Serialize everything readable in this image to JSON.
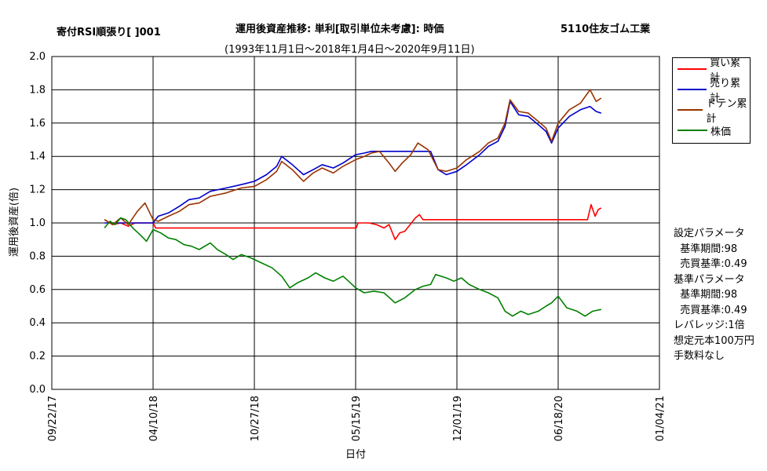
{
  "header": {
    "left_title": "寄付RSI順張り[ ]001",
    "center_title": "運用後資産推移: 単利[取引単位未考慮]: 時価",
    "right_title": "5110住友ゴム工業",
    "subtitle": "(1993年11月1日〜2018年1月4日〜2020年9月11日)"
  },
  "legend": {
    "items": [
      {
        "label": "買い累計",
        "color": "#ff0000"
      },
      {
        "label": "売り累計",
        "color": "#0000cc"
      },
      {
        "label": "ドテン累計",
        "color": "#993300"
      },
      {
        "label": "株価",
        "color": "#008000"
      }
    ]
  },
  "params": {
    "lines": [
      "設定パラメータ",
      "  基準期間:98",
      "  売買基準:0.49",
      "基準パラメータ",
      "  基準期間:98",
      "  売買基準:0.49",
      "レバレッジ:1倍",
      "想定元本100万円",
      "手数料なし"
    ]
  },
  "chart_data": {
    "type": "line",
    "xlabel": "日付",
    "ylabel": "運用後資産(倍)",
    "ylim": [
      0.0,
      2.0
    ],
    "y_ticks": [
      "0.0",
      "0.2",
      "0.4",
      "0.6",
      "0.8",
      "1.0",
      "1.2",
      "1.4",
      "1.6",
      "1.8",
      "2.0"
    ],
    "x_ticks": [
      "09/22/17",
      "04/10/18",
      "10/27/18",
      "05/15/19",
      "12/01/19",
      "06/18/20",
      "01/04/21"
    ],
    "grid": true,
    "legend_position": "right",
    "series": [
      {
        "name": "買い累計",
        "color": "#ff0000",
        "points": [
          [
            "2018-01-04",
            1.02
          ],
          [
            "2018-01-20",
            0.99
          ],
          [
            "2018-02-05",
            1.0
          ],
          [
            "2018-02-20",
            0.98
          ],
          [
            "2018-03-05",
            1.0
          ],
          [
            "2018-04-10",
            1.0
          ],
          [
            "2018-04-15",
            0.97
          ],
          [
            "2019-05-15",
            0.97
          ],
          [
            "2019-05-16",
            0.97
          ],
          [
            "2019-05-20",
            1.0
          ],
          [
            "2019-06-10",
            1.0
          ],
          [
            "2019-06-25",
            0.99
          ],
          [
            "2019-07-10",
            0.97
          ],
          [
            "2019-07-20",
            0.99
          ],
          [
            "2019-08-01",
            0.9
          ],
          [
            "2019-08-10",
            0.94
          ],
          [
            "2019-08-20",
            0.95
          ],
          [
            "2019-08-28",
            0.98
          ],
          [
            "2019-09-10",
            1.03
          ],
          [
            "2019-09-18",
            1.05
          ],
          [
            "2019-09-25",
            1.02
          ],
          [
            "2020-08-15",
            1.02
          ],
          [
            "2020-08-22",
            1.11
          ],
          [
            "2020-08-30",
            1.04
          ],
          [
            "2020-09-05",
            1.08
          ],
          [
            "2020-09-11",
            1.09
          ]
        ]
      },
      {
        "name": "売り累計",
        "color": "#0000cc",
        "points": [
          [
            "2018-01-04",
            1.0
          ],
          [
            "2018-02-01",
            1.0
          ],
          [
            "2018-04-10",
            1.0
          ],
          [
            "2018-04-20",
            1.04
          ],
          [
            "2018-05-10",
            1.06
          ],
          [
            "2018-06-01",
            1.1
          ],
          [
            "2018-06-20",
            1.14
          ],
          [
            "2018-07-10",
            1.15
          ],
          [
            "2018-08-01",
            1.19
          ],
          [
            "2018-09-01",
            1.21
          ],
          [
            "2018-10-01",
            1.23
          ],
          [
            "2018-10-27",
            1.25
          ],
          [
            "2018-11-20",
            1.29
          ],
          [
            "2018-12-10",
            1.34
          ],
          [
            "2018-12-20",
            1.4
          ],
          [
            "2019-01-10",
            1.35
          ],
          [
            "2019-02-01",
            1.29
          ],
          [
            "2019-02-20",
            1.32
          ],
          [
            "2019-03-10",
            1.35
          ],
          [
            "2019-04-01",
            1.33
          ],
          [
            "2019-04-20",
            1.36
          ],
          [
            "2019-05-15",
            1.41
          ],
          [
            "2019-06-01",
            1.42
          ],
          [
            "2019-06-15",
            1.43
          ],
          [
            "2019-10-10",
            1.43
          ],
          [
            "2019-10-25",
            1.32
          ],
          [
            "2019-11-10",
            1.29
          ],
          [
            "2019-12-01",
            1.31
          ],
          [
            "2019-12-20",
            1.35
          ],
          [
            "2020-01-15",
            1.41
          ],
          [
            "2020-02-01",
            1.46
          ],
          [
            "2020-02-20",
            1.49
          ],
          [
            "2020-03-05",
            1.58
          ],
          [
            "2020-03-15",
            1.73
          ],
          [
            "2020-04-01",
            1.65
          ],
          [
            "2020-04-20",
            1.64
          ],
          [
            "2020-05-10",
            1.59
          ],
          [
            "2020-05-25",
            1.55
          ],
          [
            "2020-06-05",
            1.48
          ],
          [
            "2020-06-18",
            1.57
          ],
          [
            "2020-07-10",
            1.64
          ],
          [
            "2020-08-01",
            1.68
          ],
          [
            "2020-08-20",
            1.7
          ],
          [
            "2020-09-01",
            1.67
          ],
          [
            "2020-09-11",
            1.66
          ]
        ]
      },
      {
        "name": "ドテン累計",
        "color": "#993300",
        "points": [
          [
            "2018-01-04",
            1.02
          ],
          [
            "2018-01-20",
            0.99
          ],
          [
            "2018-02-05",
            1.03
          ],
          [
            "2018-02-20",
            0.99
          ],
          [
            "2018-03-10",
            1.07
          ],
          [
            "2018-03-25",
            1.12
          ],
          [
            "2018-04-10",
            1.02
          ],
          [
            "2018-04-20",
            1.01
          ],
          [
            "2018-05-10",
            1.04
          ],
          [
            "2018-06-01",
            1.07
          ],
          [
            "2018-06-20",
            1.11
          ],
          [
            "2018-07-10",
            1.12
          ],
          [
            "2018-08-01",
            1.16
          ],
          [
            "2018-09-01",
            1.18
          ],
          [
            "2018-10-01",
            1.21
          ],
          [
            "2018-10-27",
            1.22
          ],
          [
            "2018-11-20",
            1.26
          ],
          [
            "2018-12-10",
            1.31
          ],
          [
            "2018-12-20",
            1.37
          ],
          [
            "2019-01-10",
            1.32
          ],
          [
            "2019-02-01",
            1.25
          ],
          [
            "2019-02-20",
            1.3
          ],
          [
            "2019-03-10",
            1.33
          ],
          [
            "2019-04-01",
            1.3
          ],
          [
            "2019-04-20",
            1.34
          ],
          [
            "2019-05-15",
            1.38
          ],
          [
            "2019-06-01",
            1.4
          ],
          [
            "2019-06-15",
            1.42
          ],
          [
            "2019-07-01",
            1.43
          ],
          [
            "2019-07-20",
            1.36
          ],
          [
            "2019-08-01",
            1.31
          ],
          [
            "2019-08-15",
            1.36
          ],
          [
            "2019-09-01",
            1.41
          ],
          [
            "2019-09-15",
            1.48
          ],
          [
            "2019-10-05",
            1.44
          ],
          [
            "2019-10-25",
            1.32
          ],
          [
            "2019-11-10",
            1.31
          ],
          [
            "2019-12-01",
            1.33
          ],
          [
            "2019-12-20",
            1.38
          ],
          [
            "2020-01-15",
            1.43
          ],
          [
            "2020-02-01",
            1.48
          ],
          [
            "2020-02-20",
            1.51
          ],
          [
            "2020-03-05",
            1.6
          ],
          [
            "2020-03-15",
            1.74
          ],
          [
            "2020-04-01",
            1.67
          ],
          [
            "2020-04-20",
            1.66
          ],
          [
            "2020-05-10",
            1.61
          ],
          [
            "2020-05-25",
            1.57
          ],
          [
            "2020-06-05",
            1.49
          ],
          [
            "2020-06-18",
            1.6
          ],
          [
            "2020-07-10",
            1.68
          ],
          [
            "2020-08-01",
            1.72
          ],
          [
            "2020-08-20",
            1.8
          ],
          [
            "2020-09-01",
            1.73
          ],
          [
            "2020-09-11",
            1.75
          ]
        ]
      },
      {
        "name": "株価",
        "color": "#008000",
        "points": [
          [
            "2018-01-04",
            0.97
          ],
          [
            "2018-01-15",
            1.01
          ],
          [
            "2018-01-25",
            0.99
          ],
          [
            "2018-02-05",
            1.03
          ],
          [
            "2018-02-15",
            1.02
          ],
          [
            "2018-03-01",
            0.97
          ],
          [
            "2018-03-15",
            0.93
          ],
          [
            "2018-03-28",
            0.89
          ],
          [
            "2018-04-10",
            0.96
          ],
          [
            "2018-04-25",
            0.94
          ],
          [
            "2018-05-10",
            0.91
          ],
          [
            "2018-05-25",
            0.9
          ],
          [
            "2018-06-10",
            0.87
          ],
          [
            "2018-06-25",
            0.86
          ],
          [
            "2018-07-10",
            0.84
          ],
          [
            "2018-08-01",
            0.88
          ],
          [
            "2018-08-15",
            0.84
          ],
          [
            "2018-09-01",
            0.81
          ],
          [
            "2018-09-15",
            0.78
          ],
          [
            "2018-10-01",
            0.81
          ],
          [
            "2018-10-20",
            0.79
          ],
          [
            "2018-11-10",
            0.76
          ],
          [
            "2018-12-01",
            0.73
          ],
          [
            "2018-12-20",
            0.68
          ],
          [
            "2019-01-05",
            0.61
          ],
          [
            "2019-01-20",
            0.64
          ],
          [
            "2019-02-10",
            0.67
          ],
          [
            "2019-02-25",
            0.7
          ],
          [
            "2019-03-15",
            0.67
          ],
          [
            "2019-04-01",
            0.65
          ],
          [
            "2019-04-20",
            0.68
          ],
          [
            "2019-05-01",
            0.65
          ],
          [
            "2019-05-15",
            0.61
          ],
          [
            "2019-06-01",
            0.58
          ],
          [
            "2019-06-20",
            0.59
          ],
          [
            "2019-07-10",
            0.58
          ],
          [
            "2019-08-01",
            0.52
          ],
          [
            "2019-08-20",
            0.55
          ],
          [
            "2019-09-10",
            0.6
          ],
          [
            "2019-09-25",
            0.62
          ],
          [
            "2019-10-10",
            0.63
          ],
          [
            "2019-10-20",
            0.69
          ],
          [
            "2019-11-10",
            0.67
          ],
          [
            "2019-11-25",
            0.65
          ],
          [
            "2019-12-10",
            0.67
          ],
          [
            "2019-12-25",
            0.63
          ],
          [
            "2020-01-15",
            0.6
          ],
          [
            "2020-02-01",
            0.58
          ],
          [
            "2020-02-20",
            0.55
          ],
          [
            "2020-03-05",
            0.47
          ],
          [
            "2020-03-20",
            0.44
          ],
          [
            "2020-04-05",
            0.47
          ],
          [
            "2020-04-20",
            0.45
          ],
          [
            "2020-05-10",
            0.47
          ],
          [
            "2020-05-25",
            0.5
          ],
          [
            "2020-06-05",
            0.52
          ],
          [
            "2020-06-18",
            0.56
          ],
          [
            "2020-07-05",
            0.49
          ],
          [
            "2020-07-25",
            0.47
          ],
          [
            "2020-08-10",
            0.44
          ],
          [
            "2020-08-25",
            0.47
          ],
          [
            "2020-09-11",
            0.48
          ]
        ]
      }
    ]
  }
}
